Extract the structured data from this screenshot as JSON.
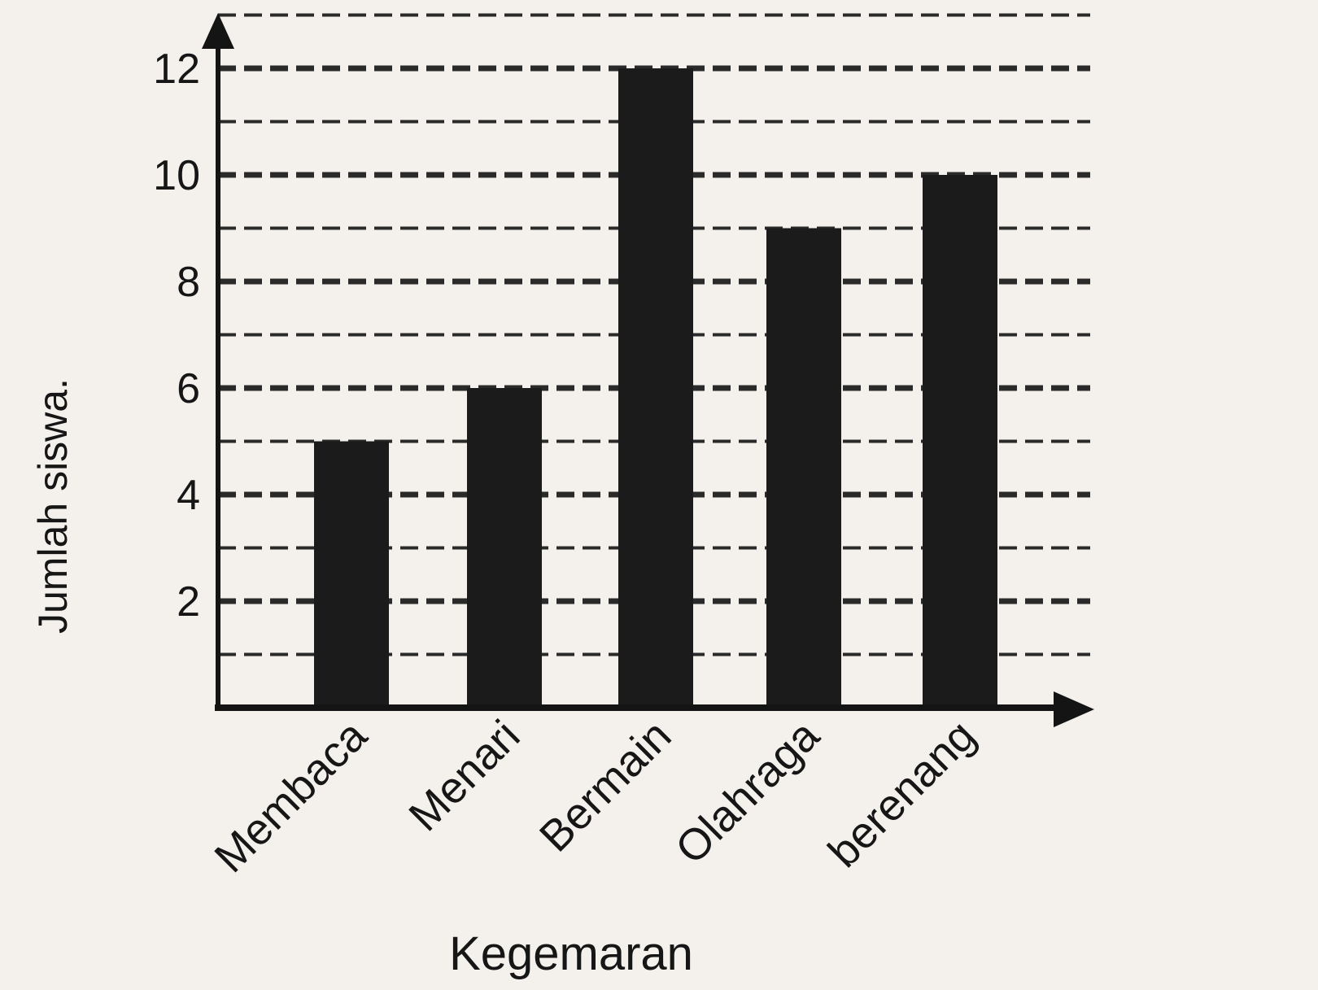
{
  "chart_data": {
    "type": "bar",
    "categories": [
      "Membaca",
      "Menari",
      "Bermain",
      "Olahraga",
      "berenang"
    ],
    "values": [
      5,
      6,
      12,
      9,
      10
    ],
    "xlabel": "Kegemaran",
    "ylabel": "Jumlah siswa.",
    "y_tick_labels": [
      "2",
      "4",
      "6",
      "8",
      "10",
      "12"
    ],
    "y_ticks": [
      2,
      4,
      6,
      8,
      10,
      12
    ],
    "gridlines": [
      1,
      2,
      3,
      4,
      5,
      6,
      7,
      8,
      9,
      10,
      11,
      12,
      13
    ],
    "ylim": [
      0,
      13
    ],
    "grid": true,
    "grid_style": "dashed",
    "bar_color": "#1b1b1b",
    "axis_color": "#141414",
    "background": "#f4f1ec"
  }
}
